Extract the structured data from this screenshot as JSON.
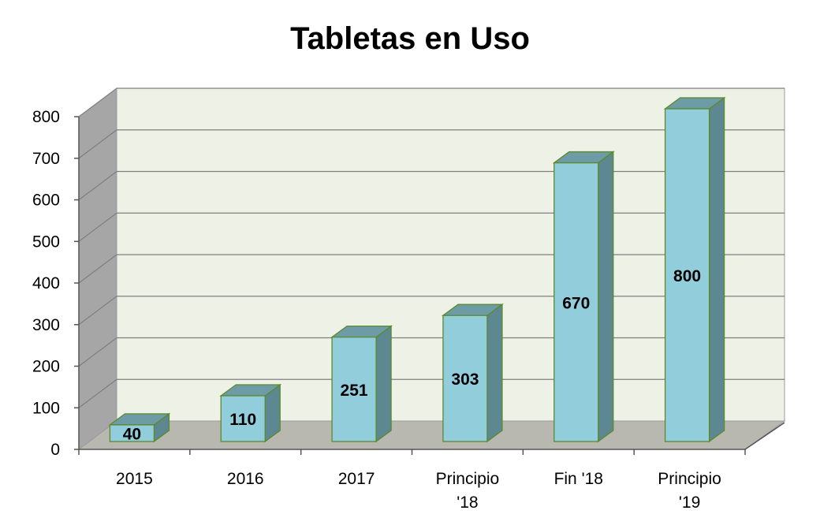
{
  "chart_data": {
    "type": "bar",
    "title": "Tabletas en Uso",
    "xlabel": "",
    "ylabel": "",
    "categories": [
      "2015",
      "2016",
      "2017",
      "Principio '18",
      "Fin '18",
      "Principio '19"
    ],
    "category_lines": [
      [
        "2015"
      ],
      [
        "2016"
      ],
      [
        "2017"
      ],
      [
        "Principio",
        "'18"
      ],
      [
        "Fin '18"
      ],
      [
        "Principio",
        "'19"
      ]
    ],
    "values": [
      40,
      110,
      251,
      303,
      670,
      800
    ],
    "data_labels": [
      "40",
      "110",
      "251",
      "303",
      "670",
      "800"
    ],
    "y_ticks": [
      "0",
      "100",
      "200",
      "300",
      "400",
      "500",
      "600",
      "700",
      "800"
    ],
    "ylim": [
      0,
      800
    ],
    "grid": true,
    "legend": "none",
    "three_d": true,
    "colors": {
      "bar_front": "#92cddc",
      "bar_top": "#6e9ca6",
      "bar_side": "#5e8891",
      "bar_edge": "#5a8a2a",
      "wall": "#eef2e6",
      "side_wall": "#a6a6a6",
      "floor": "#b8b8b0",
      "gridline": "#7f7f7f"
    }
  }
}
